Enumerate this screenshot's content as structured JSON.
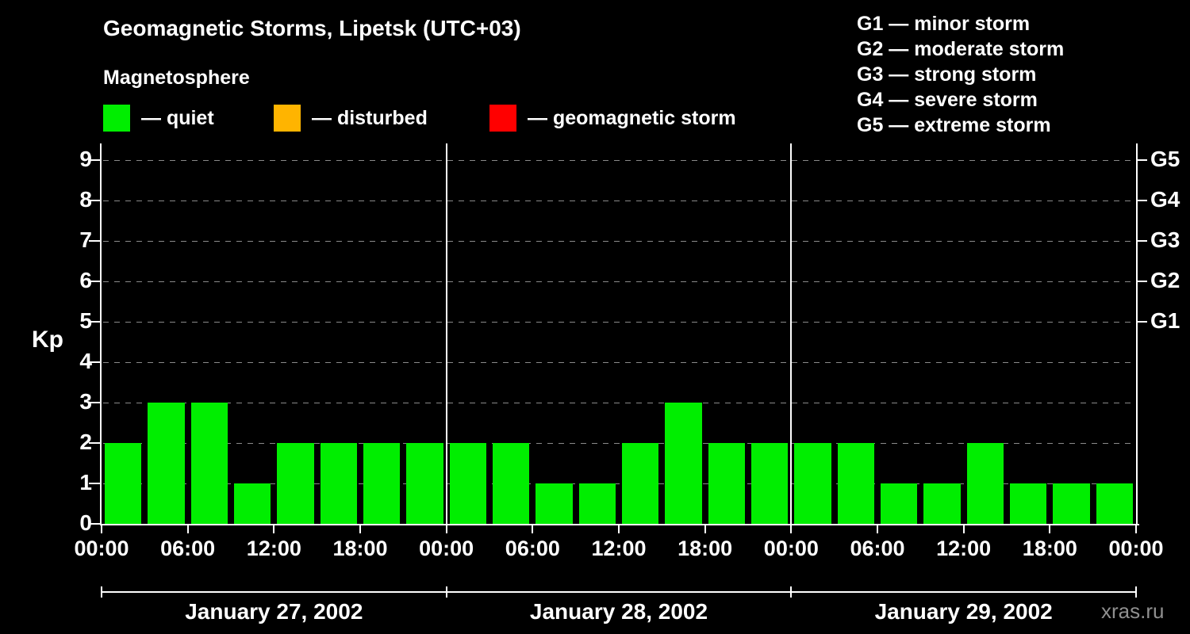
{
  "title": "Geomagnetic Storms, Lipetsk (UTC+03)",
  "subtitle": "Magnetosphere",
  "legend": {
    "items": [
      {
        "label": "— quiet",
        "color": "#00ee00"
      },
      {
        "label": "— disturbed",
        "color": "#ffb400"
      },
      {
        "label": "— geomagnetic storm",
        "color": "#ff0000"
      }
    ]
  },
  "storm_legend": {
    "items": [
      "G1 — minor storm",
      "G2 — moderate storm",
      "G3 — strong storm",
      "G4 — severe storm",
      "G5 — extreme storm"
    ]
  },
  "watermark": "xras.ru",
  "chart_data": {
    "type": "bar",
    "title": "Geomagnetic Storms, Lipetsk (UTC+03)",
    "ylabel": "Kp",
    "ylim": [
      0,
      9.4
    ],
    "yticks": [
      0,
      1,
      2,
      3,
      4,
      5,
      6,
      7,
      8,
      9
    ],
    "grid": "dashed horizontal at each integer Kp",
    "right_axis_labels": [
      {
        "label": "G1",
        "value": 5
      },
      {
        "label": "G2",
        "value": 6
      },
      {
        "label": "G3",
        "value": 7
      },
      {
        "label": "G4",
        "value": 8
      },
      {
        "label": "G5",
        "value": 9
      }
    ],
    "x_tick_labels": [
      "00:00",
      "06:00",
      "12:00",
      "18:00",
      "00:00",
      "06:00",
      "12:00",
      "18:00",
      "00:00",
      "06:00",
      "12:00",
      "18:00",
      "00:00"
    ],
    "hours_per_bar": 3,
    "days": [
      {
        "date": "January 27, 2002",
        "values": [
          2,
          3,
          3,
          1,
          2,
          2,
          2,
          2
        ]
      },
      {
        "date": "January 28, 2002",
        "values": [
          2,
          2,
          1,
          1,
          2,
          3,
          2,
          2
        ]
      },
      {
        "date": "January 29, 2002",
        "values": [
          2,
          2,
          1,
          1,
          2,
          1,
          1,
          1
        ]
      }
    ],
    "color_rules": {
      "quiet_color": "#00ee00",
      "disturbed_color": "#ffb400",
      "storm_color": "#ff0000",
      "disturbed_min_kp": 4,
      "storm_min_kp": 5
    }
  }
}
